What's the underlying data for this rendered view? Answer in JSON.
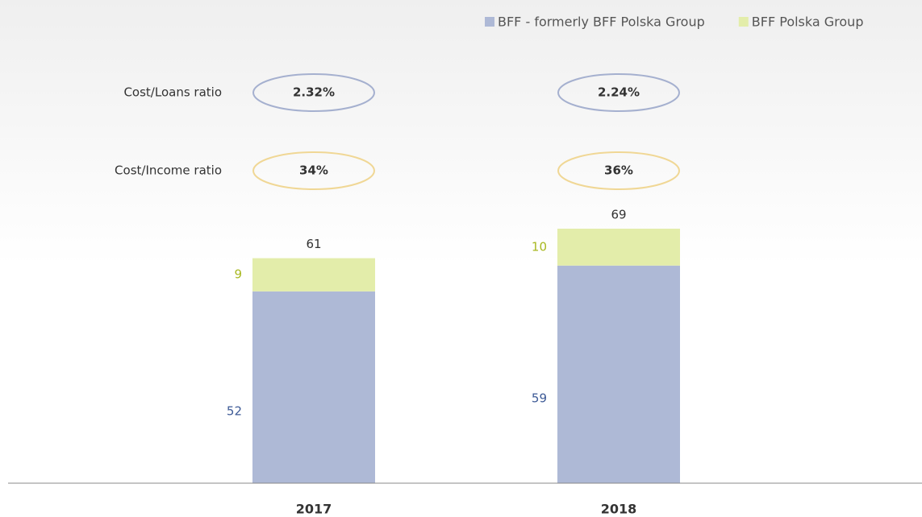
{
  "chart_data": {
    "type": "stacked_bar",
    "categories": [
      "2017",
      "2018"
    ],
    "series": [
      {
        "name": "BFF - formerly BFF Polska Group",
        "color": "#aeb9d6",
        "label_color": "#3d5a96",
        "values": [
          52,
          59
        ]
      },
      {
        "name": "BFF Polska Group",
        "color": "#e3edaa",
        "label_color": "#a8b820",
        "values": [
          9,
          10
        ]
      }
    ],
    "totals": [
      61,
      69
    ],
    "ylim": [
      0,
      131
    ],
    "legend": "top-right",
    "ratios": [
      {
        "label": "Cost/Loans ratio",
        "color": "#a5b0cf",
        "values": [
          2.32,
          2.24
        ],
        "value_labels": [
          "2.32%",
          "2.24%"
        ]
      },
      {
        "label": "Cost/Income ratio",
        "color": "#f0d795",
        "values": [
          34,
          36
        ],
        "value_labels": [
          "34%",
          "36%"
        ]
      }
    ]
  }
}
